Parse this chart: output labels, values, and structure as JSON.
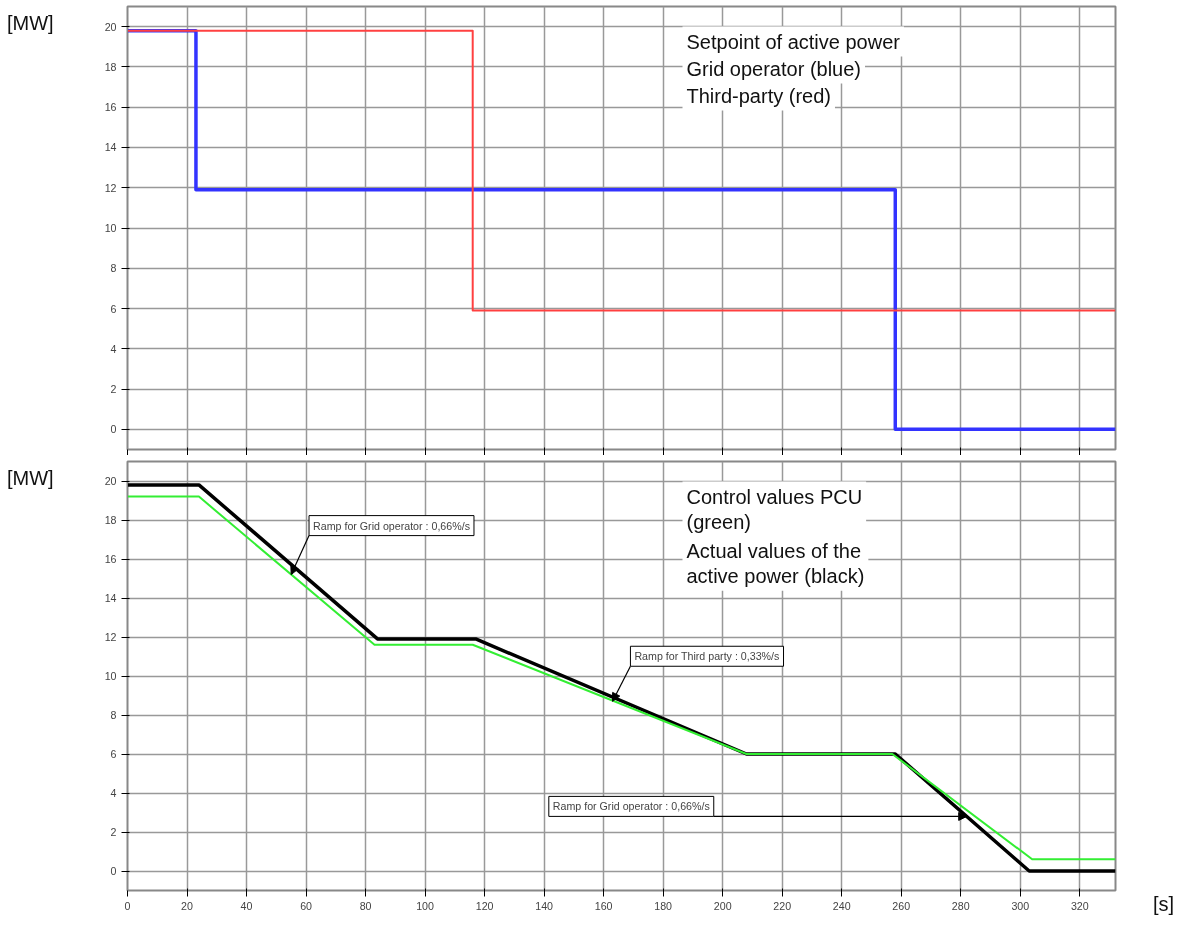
{
  "chart_data": [
    {
      "type": "step",
      "ylabel": "[MW]",
      "xlim": [
        0,
        332
      ],
      "ylim": [
        -1,
        21
      ],
      "xticks": [
        0,
        20,
        40,
        60,
        80,
        100,
        120,
        140,
        160,
        180,
        200,
        220,
        240,
        260,
        280,
        300,
        320
      ],
      "yticks": [
        0,
        2,
        4,
        6,
        8,
        10,
        12,
        14,
        16,
        18,
        20
      ],
      "grid": true,
      "tick_labels": "y",
      "annotations": [
        "Setpoint of active power",
        "Grid operator (blue)",
        "Third-party (red)"
      ],
      "series": [
        {
          "color": "#3333ff",
          "x": [
            0,
            23,
            258,
            332
          ],
          "values": [
            19.8,
            11.9,
            0,
            0
          ]
        },
        {
          "color": "#ff4040",
          "x": [
            0,
            116,
            332
          ],
          "values": [
            19.8,
            5.9,
            5.9
          ]
        }
      ]
    },
    {
      "type": "line",
      "ylabel": "[MW]",
      "xlabel": "[s]",
      "xlim": [
        0,
        332
      ],
      "ylim": [
        -1,
        21
      ],
      "xticks": [
        0,
        20,
        40,
        60,
        80,
        100,
        120,
        140,
        160,
        180,
        200,
        220,
        240,
        260,
        280,
        300,
        320
      ],
      "yticks": [
        0,
        2,
        4,
        6,
        8,
        10,
        12,
        14,
        16,
        18,
        20
      ],
      "grid": true,
      "annotations": [
        "Control values PCU (green)",
        "Actual values of the active power (black)",
        {
          "text": "Ramp for Grid operator : 0,66%/s",
          "x": 55,
          "y": 15.2
        },
        {
          "text": "Ramp for Third party : 0,33%/s",
          "x": 163,
          "y": 8.7
        },
        {
          "text": "Ramp for Grid operator : 0,66%/s",
          "x": 282,
          "y": 2.8
        }
      ],
      "series": [
        {
          "color": "#000000",
          "x": [
            0,
            24,
            84,
            117,
            208,
            258,
            303,
            332
          ],
          "values": [
            19.8,
            19.8,
            11.9,
            11.9,
            6.0,
            6.0,
            0,
            0
          ]
        },
        {
          "color": "#33ee33",
          "x": [
            0,
            24,
            83,
            116,
            208,
            257,
            304,
            332
          ],
          "values": [
            19.2,
            19.2,
            11.6,
            11.6,
            6.0,
            6.0,
            0.6,
            0.6
          ]
        }
      ]
    }
  ]
}
